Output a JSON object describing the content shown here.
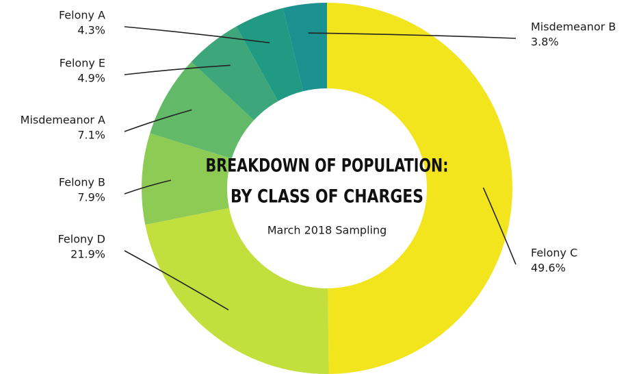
{
  "chart_data": {
    "type": "donut",
    "title": [
      "BREAKDOWN OF POPULATION:",
      "BY CLASS OF CHARGES"
    ],
    "subtitle": "March 2018 Sampling",
    "categories": [
      "Felony C",
      "Felony D",
      "Felony B",
      "Misdemeanor A",
      "Felony E",
      "Felony A",
      "Misdemeanor B"
    ],
    "values": [
      49.6,
      21.9,
      7.9,
      7.1,
      4.9,
      4.3,
      3.8
    ],
    "value_labels": [
      "49.6%",
      "21.9%",
      "7.9%",
      "7.1%",
      "4.9%",
      "4.3%",
      "3.8%"
    ],
    "colors": [
      "#f2e51e",
      "#c3df3d",
      "#8dcb55",
      "#62ba69",
      "#3da67a",
      "#219a83",
      "#1b9190"
    ]
  }
}
